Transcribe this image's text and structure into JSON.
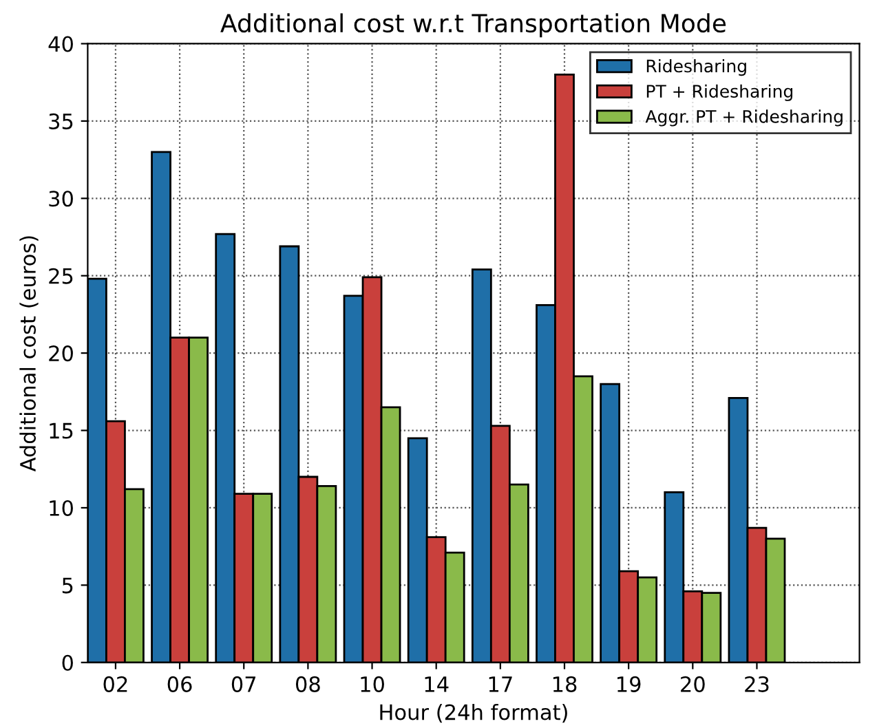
{
  "chart_data": {
    "type": "bar",
    "title": "Additional cost w.r.t Transportation Mode",
    "xlabel": "Hour (24h format)",
    "ylabel": "Additional cost (euros)",
    "categories": [
      "02",
      "06",
      "07",
      "08",
      "10",
      "14",
      "17",
      "18",
      "19",
      "20",
      "23"
    ],
    "series": [
      {
        "name": "Ridesharing",
        "color": "#1f6fa8",
        "values": [
          24.8,
          33.0,
          27.7,
          26.9,
          23.7,
          14.5,
          25.4,
          23.1,
          18.0,
          11.0,
          17.1
        ]
      },
      {
        "name": "PT + Ridesharing",
        "color": "#c9403c",
        "values": [
          15.6,
          21.0,
          10.9,
          12.0,
          24.9,
          8.1,
          15.3,
          38.0,
          5.9,
          4.6,
          8.7
        ]
      },
      {
        "name": "Aggr. PT + Ridesharing",
        "color": "#8aba4a",
        "values": [
          11.2,
          21.0,
          10.9,
          11.4,
          16.5,
          7.1,
          11.5,
          18.5,
          5.5,
          4.5,
          8.0
        ]
      }
    ],
    "ylim": [
      0,
      40
    ],
    "yticks": [
      0,
      5,
      10,
      15,
      20,
      25,
      30,
      35,
      40
    ],
    "grid": true,
    "legend": "top right"
  }
}
